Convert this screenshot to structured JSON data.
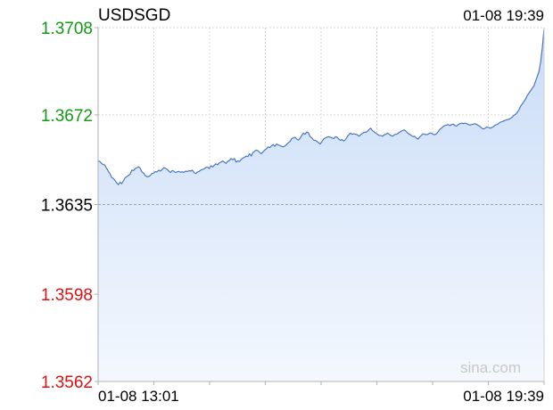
{
  "header": {
    "symbol": "USDSGD",
    "timestamp": "01-08 19:39"
  },
  "watermark": "sina.com",
  "colors": {
    "line": "#3f6fbd",
    "fill_top": "#c9dcf7",
    "fill_bottom": "#f4f8fe",
    "up": "#119911",
    "down": "#dd1111",
    "neutral": "#000000",
    "grid": "#d9d9d9",
    "baseline": "#9aa4b8",
    "watermark": "#c8c8c8"
  },
  "chart_data": {
    "type": "area",
    "title": "USDSGD",
    "ylim": [
      1.3562,
      1.3708
    ],
    "y_ticks": [
      {
        "label": "1.3708",
        "value": 1.3708,
        "trend": "up"
      },
      {
        "label": "1.3672",
        "value": 1.3672,
        "trend": "up"
      },
      {
        "label": "1.3635",
        "value": 1.3635,
        "trend": "neutral"
      },
      {
        "label": "1.3598",
        "value": 1.3598,
        "trend": "down"
      },
      {
        "label": "1.3562",
        "value": 1.3562,
        "trend": "down"
      }
    ],
    "x_ticks": [
      "01-08 13:01",
      "01-08 19:39"
    ],
    "baseline": 1.3635,
    "grid": true,
    "series": [
      {
        "values": [
          1.3653,
          1.36528,
          1.3652,
          1.36515,
          1.36513,
          1.365,
          1.36488,
          1.36478,
          1.36462,
          1.36458,
          1.3645,
          1.3644,
          1.36432,
          1.36442,
          1.36436,
          1.36448,
          1.3646,
          1.36465,
          1.3647,
          1.36475,
          1.36492,
          1.3649,
          1.36498,
          1.36502,
          1.36506,
          1.365,
          1.36485,
          1.3648,
          1.3647,
          1.36465,
          1.36465,
          1.3647,
          1.36478,
          1.3648,
          1.36486,
          1.36485,
          1.36492,
          1.36488,
          1.36494,
          1.36502,
          1.365,
          1.36495,
          1.36488,
          1.36482,
          1.3649,
          1.36488,
          1.36482,
          1.36485,
          1.36487,
          1.36483,
          1.36485,
          1.36483,
          1.36488,
          1.36486,
          1.3649,
          1.36488,
          1.36492,
          1.36482,
          1.36478,
          1.36484,
          1.36487,
          1.36492,
          1.36495,
          1.36497,
          1.36503,
          1.36505,
          1.36498,
          1.3651,
          1.36505,
          1.36512,
          1.36518,
          1.36514,
          1.36522,
          1.36525,
          1.3653,
          1.36525,
          1.3652,
          1.36528,
          1.36532,
          1.3654,
          1.36535,
          1.3654,
          1.36525,
          1.3653,
          1.36528,
          1.36536,
          1.36542,
          1.36545,
          1.3655,
          1.36548,
          1.3656,
          1.3655,
          1.36565,
          1.3657,
          1.36575,
          1.36572,
          1.36565,
          1.3656,
          1.36568,
          1.36575,
          1.3658,
          1.36588,
          1.36585,
          1.36592,
          1.36598,
          1.3659,
          1.366,
          1.36596,
          1.36594,
          1.3659,
          1.36588,
          1.36592,
          1.36598,
          1.36605,
          1.3661,
          1.36622,
          1.36625,
          1.36628,
          1.3662,
          1.36616,
          1.36624,
          1.36635,
          1.36645,
          1.3664,
          1.3665,
          1.36646,
          1.3663,
          1.36625,
          1.36616,
          1.36615,
          1.36611,
          1.36605,
          1.366,
          1.3661,
          1.3662,
          1.36625,
          1.36628,
          1.3663,
          1.36628,
          1.36625,
          1.36622,
          1.3663,
          1.36628,
          1.3662,
          1.36615,
          1.36618,
          1.36612,
          1.36618,
          1.3663,
          1.36638,
          1.36645,
          1.3664,
          1.36642,
          1.3664,
          1.36638,
          1.36632,
          1.36638,
          1.36644,
          1.36648,
          1.36648,
          1.36652,
          1.3666,
          1.36665,
          1.36655,
          1.3665,
          1.36645,
          1.3664,
          1.36635,
          1.36635,
          1.36632,
          1.36638,
          1.3664,
          1.36645,
          1.3664,
          1.36635,
          1.36632,
          1.36638,
          1.3664,
          1.36642,
          1.36648,
          1.36652,
          1.36656,
          1.36658,
          1.36652,
          1.36645,
          1.3664,
          1.36636,
          1.3663,
          1.36632,
          1.36625,
          1.3662,
          1.36628,
          1.36635,
          1.36642,
          1.3664,
          1.36638,
          1.3664,
          1.36645,
          1.36645,
          1.3664,
          1.36638,
          1.36642,
          1.3665,
          1.3666,
          1.36665,
          1.36672,
          1.36676,
          1.36678,
          1.3668,
          1.36676,
          1.3668,
          1.36682,
          1.36676,
          1.36674,
          1.3668,
          1.36684,
          1.36686,
          1.36684,
          1.36686,
          1.36684,
          1.3668,
          1.36678,
          1.3668,
          1.36682,
          1.36684,
          1.3668,
          1.36676,
          1.36672,
          1.36665,
          1.36662,
          1.36665,
          1.3667,
          1.36668,
          1.36665,
          1.36668,
          1.36672,
          1.36678,
          1.3668,
          1.36685,
          1.3669,
          1.36692,
          1.36695,
          1.36698,
          1.367,
          1.36702,
          1.36705,
          1.3671,
          1.36718,
          1.36722,
          1.3673,
          1.3674,
          1.36755,
          1.36765,
          1.36775,
          1.36785,
          1.368,
          1.3681,
          1.3682,
          1.3683,
          1.3684,
          1.3686,
          1.3688,
          1.369,
          1.3694,
          1.37,
          1.3708
        ]
      }
    ]
  }
}
